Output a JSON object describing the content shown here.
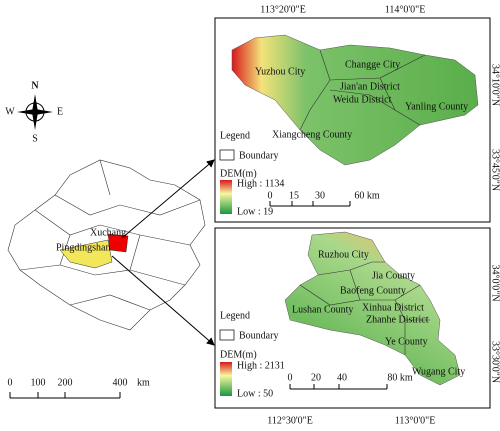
{
  "compass": {
    "n": "N",
    "s": "S",
    "e": "E",
    "w": "W"
  },
  "overview": {
    "labels": [
      "Xuchang",
      "Pingdingshan"
    ],
    "scale": {
      "ticks": [
        "0",
        "100",
        "200",
        "400"
      ],
      "unit": "km"
    }
  },
  "map_top": {
    "lon_labels": [
      "113°20'0\"E",
      "114°0'0\"E"
    ],
    "lat_labels": [
      "34°10'0\"N",
      "33°45'0\"N"
    ],
    "places": [
      "Yuzhou City",
      "Changge City",
      "Jian'an District",
      "Weidu District",
      "Yanling County",
      "Xiangcheng County"
    ],
    "legend": {
      "title": "Legend",
      "boundary": "Boundary",
      "dem": "DEM(m)",
      "high": "High : 1134",
      "low": "Low : 19"
    },
    "scale": {
      "ticks": [
        "0",
        "15",
        "30",
        "60 km"
      ]
    }
  },
  "map_bottom": {
    "lon_labels": [
      "112°30'0\"E",
      "113°0'0\"E"
    ],
    "lat_labels": [
      "34°0'0\"N",
      "33°30'0\"N"
    ],
    "places": [
      "Ruzhou City",
      "Jia County",
      "Baofeng County",
      "Xinhua District",
      "Lushan County",
      "Zhanhe District",
      "Ye County",
      "Wugang City"
    ],
    "legend": {
      "title": "Legend",
      "boundary": "Boundary",
      "dem": "DEM(m)",
      "high": "High : 2131",
      "low": "Low : 50"
    },
    "scale": {
      "ticks": [
        "0",
        "20",
        "40",
        "80 km"
      ]
    }
  }
}
